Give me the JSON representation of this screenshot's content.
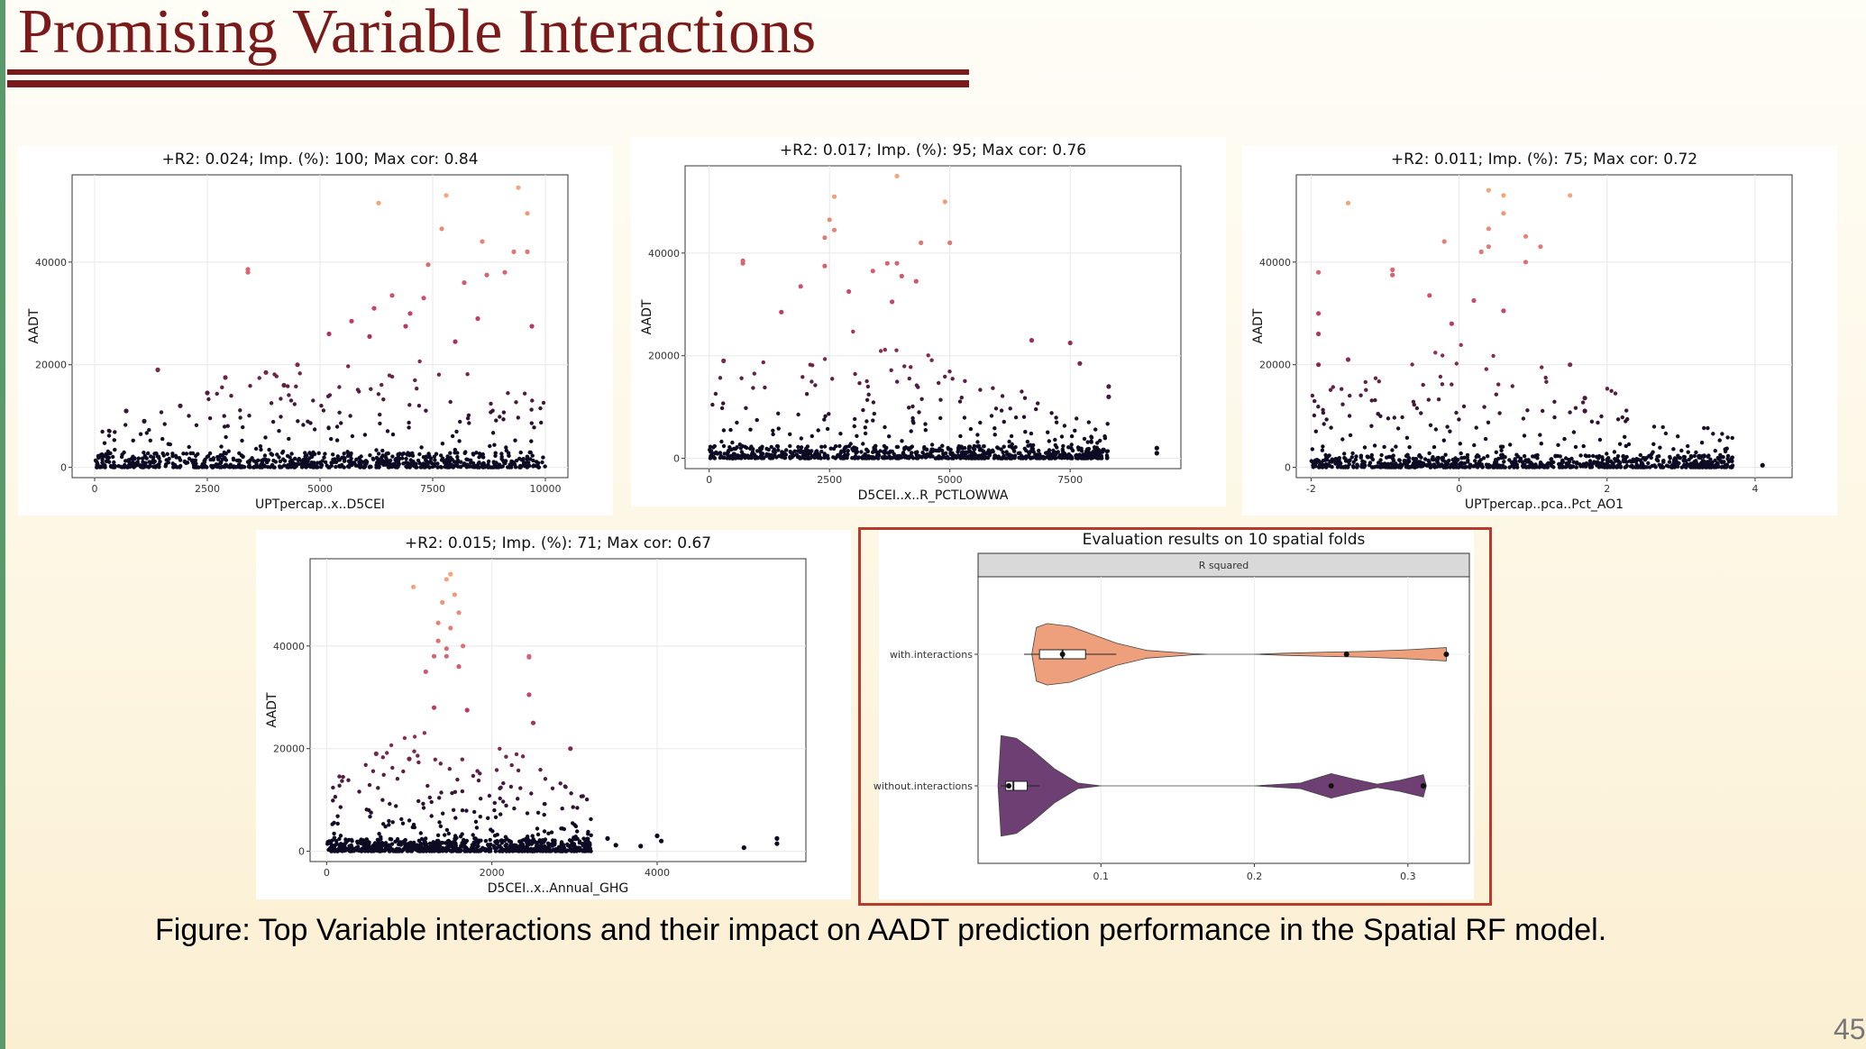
{
  "slide": {
    "title": "Promising Variable Interactions",
    "caption": "Figure: Top Variable interactions and their impact on AADT prediction performance in the Spatial RF model.",
    "page_number": "45"
  },
  "colors": {
    "title": "#7b1a1a",
    "frame": "#b83a2e",
    "scatter_low": "#0d0a23",
    "scatter_mid": "#c03a6a",
    "scatter_high": "#f4a57c",
    "violin_with": "#eea07c",
    "violin_without": "#6e3f72"
  },
  "chart_data": [
    {
      "type": "scatter",
      "title": "+R2: 0.024; Imp. (%): 100; Max cor: 0.84",
      "xlabel": "UPTpercap..x..D5CEI",
      "ylabel": "AADT",
      "xlim": [
        -500,
        10500
      ],
      "ylim": [
        -2000,
        57000
      ],
      "xticks": [
        0,
        2500,
        5000,
        7500,
        10000
      ],
      "yticks": [
        0,
        20000,
        40000
      ],
      "points": [
        [
          3400,
          38000
        ],
        [
          3400,
          38600
        ],
        [
          1400,
          19000
        ],
        [
          6300,
          51500
        ],
        [
          7800,
          53000
        ],
        [
          9400,
          54500
        ],
        [
          9600,
          49500
        ],
        [
          7700,
          46500
        ],
        [
          8600,
          44000
        ],
        [
          9300,
          42000
        ],
        [
          9600,
          42000
        ],
        [
          7400,
          39500
        ],
        [
          8700,
          37500
        ],
        [
          6600,
          33500
        ],
        [
          7300,
          33000
        ],
        [
          8200,
          36000
        ],
        [
          9100,
          38000
        ],
        [
          6200,
          31000
        ],
        [
          7000,
          30000
        ],
        [
          5700,
          28500
        ],
        [
          8500,
          29000
        ],
        [
          9700,
          27500
        ],
        [
          5200,
          26000
        ],
        [
          6100,
          25500
        ],
        [
          6900,
          27500
        ],
        [
          8000,
          24500
        ],
        [
          4500,
          20000
        ],
        [
          3800,
          18500
        ],
        [
          2900,
          17500
        ],
        [
          2500,
          14500
        ],
        [
          1900,
          12000
        ],
        [
          1100,
          9000
        ],
        [
          700,
          11000
        ],
        [
          4200,
          16000
        ]
      ],
      "cloud": {
        "x_range": [
          0,
          10000
        ],
        "x_peak": 6000,
        "dense_max": 6000,
        "sparse_max": 25000
      }
    },
    {
      "type": "scatter",
      "title": "+R2: 0.017; Imp. (%): 95; Max cor: 0.76",
      "xlabel": "D5CEI..x..R_PCTLOWWA",
      "ylabel": "AADT",
      "xlim": [
        -500,
        9800
      ],
      "ylim": [
        -2000,
        57000
      ],
      "xticks": [
        0,
        2500,
        5000,
        7500
      ],
      "yticks": [
        0,
        20000,
        40000
      ],
      "points": [
        [
          3900,
          55000
        ],
        [
          2600,
          51000
        ],
        [
          4900,
          50000
        ],
        [
          2500,
          46500
        ],
        [
          2600,
          44500
        ],
        [
          2400,
          43000
        ],
        [
          4400,
          42000
        ],
        [
          5000,
          42000
        ],
        [
          700,
          38000
        ],
        [
          700,
          38500
        ],
        [
          3700,
          38000
        ],
        [
          3900,
          38000
        ],
        [
          2400,
          37500
        ],
        [
          3400,
          36500
        ],
        [
          4000,
          35500
        ],
        [
          4300,
          34500
        ],
        [
          1900,
          33500
        ],
        [
          2900,
          32500
        ],
        [
          1500,
          28500
        ],
        [
          3800,
          30500
        ],
        [
          6700,
          23000
        ],
        [
          7500,
          22500
        ],
        [
          7700,
          18500
        ],
        [
          8300,
          14000
        ],
        [
          8300,
          12000
        ],
        [
          9300,
          2000
        ],
        [
          9300,
          1000
        ],
        [
          300,
          19000
        ]
      ],
      "cloud": {
        "x_range": [
          0,
          8300
        ],
        "x_peak": 3000,
        "dense_max": 5000,
        "sparse_max": 26000
      }
    },
    {
      "type": "scatter",
      "title": "+R2: 0.011; Imp. (%): 75; Max cor: 0.72",
      "xlabel": "UPTpercap..pca..Pct_AO1",
      "ylabel": "AADT",
      "xlim": [
        -2.2,
        4.5
      ],
      "ylim": [
        -2000,
        57000
      ],
      "xticks": [
        -2,
        0,
        2,
        4
      ],
      "yticks": [
        0,
        20000,
        40000
      ],
      "points": [
        [
          -1.5,
          51500
        ],
        [
          0.4,
          54000
        ],
        [
          0.6,
          53000
        ],
        [
          1.5,
          53000
        ],
        [
          0.6,
          49500
        ],
        [
          0.4,
          46500
        ],
        [
          -0.9,
          38500
        ],
        [
          -0.9,
          37500
        ],
        [
          0.4,
          43000
        ],
        [
          0.9,
          45000
        ],
        [
          1.1,
          43000
        ],
        [
          0.3,
          42000
        ],
        [
          0.9,
          40000
        ],
        [
          -1.9,
          38000
        ],
        [
          -0.2,
          44000
        ],
        [
          -0.4,
          33500
        ],
        [
          0.2,
          32500
        ],
        [
          0.6,
          30500
        ],
        [
          -1.9,
          30000
        ],
        [
          -1.9,
          26000
        ],
        [
          -0.1,
          28000
        ],
        [
          -1.9,
          20000
        ],
        [
          1.5,
          20000
        ],
        [
          1.7,
          13500
        ],
        [
          1.7,
          11000
        ],
        [
          3.6,
          3500
        ],
        [
          4.1,
          400
        ],
        [
          -1.5,
          21000
        ]
      ],
      "cloud": {
        "x_range": [
          -2,
          3.7
        ],
        "x_peak": 0,
        "dense_max": 5000,
        "sparse_max": 26000
      }
    },
    {
      "type": "scatter",
      "title": "+R2: 0.015; Imp. (%): 71; Max cor: 0.67",
      "xlabel": "D5CEI..x..Annual_GHG",
      "ylabel": "AADT",
      "xlim": [
        -200,
        5800
      ],
      "ylim": [
        -2000,
        57000
      ],
      "xticks": [
        0,
        2000,
        4000
      ],
      "yticks": [
        0,
        20000,
        40000
      ],
      "points": [
        [
          1500,
          54000
        ],
        [
          1450,
          53000
        ],
        [
          1050,
          51500
        ],
        [
          1550,
          50000
        ],
        [
          1400,
          48500
        ],
        [
          1600,
          46500
        ],
        [
          1350,
          44500
        ],
        [
          1500,
          43500
        ],
        [
          1350,
          41000
        ],
        [
          1650,
          40000
        ],
        [
          1450,
          39500
        ],
        [
          1300,
          38000
        ],
        [
          1450,
          38000
        ],
        [
          2450,
          38000
        ],
        [
          2450,
          37800
        ],
        [
          1600,
          36000
        ],
        [
          1200,
          35000
        ],
        [
          2450,
          30500
        ],
        [
          1300,
          28000
        ],
        [
          1700,
          27500
        ],
        [
          2500,
          25000
        ],
        [
          2950,
          20000
        ],
        [
          600,
          19000
        ],
        [
          1000,
          18000
        ],
        [
          5450,
          2500
        ],
        [
          5450,
          1500
        ],
        [
          5050,
          700
        ],
        [
          4000,
          3000
        ],
        [
          4050,
          2000
        ],
        [
          3800,
          1000
        ],
        [
          3400,
          2500
        ],
        [
          3500,
          1200
        ]
      ],
      "cloud": {
        "x_range": [
          0,
          3200
        ],
        "x_peak": 1450,
        "dense_max": 5000,
        "sparse_max": 28000
      }
    },
    {
      "type": "violin",
      "title": "Evaluation results on 10 spatial folds",
      "facet": "R squared",
      "categories": [
        "with.interactions",
        "without.interactions"
      ],
      "xlim": [
        0.02,
        0.34
      ],
      "xticks": [
        0.1,
        0.2,
        0.3
      ],
      "series": [
        {
          "points": [
            0.075,
            0.26,
            0.325
          ],
          "box": {
            "q1": 0.06,
            "median": 0.075,
            "q3": 0.09,
            "wmin": 0.05,
            "wmax": 0.11
          },
          "profile": [
            [
              0.055,
              0.0
            ],
            [
              0.058,
              0.48
            ],
            [
              0.065,
              0.55
            ],
            [
              0.08,
              0.5
            ],
            [
              0.095,
              0.35
            ],
            [
              0.11,
              0.2
            ],
            [
              0.13,
              0.07
            ],
            [
              0.16,
              0.01
            ],
            [
              0.17,
              0.0
            ],
            [
              0.2,
              0.0
            ],
            [
              0.22,
              0.02
            ],
            [
              0.25,
              0.04
            ],
            [
              0.27,
              0.05
            ],
            [
              0.3,
              0.08
            ],
            [
              0.325,
              0.12
            ]
          ]
        },
        {
          "points": [
            0.04,
            0.25,
            0.31
          ],
          "box": {
            "q1": 0.038,
            "median": 0.043,
            "q3": 0.052,
            "wmin": 0.035,
            "wmax": 0.06
          },
          "profile": [
            [
              0.033,
              0.0
            ],
            [
              0.035,
              0.9
            ],
            [
              0.045,
              0.85
            ],
            [
              0.055,
              0.65
            ],
            [
              0.07,
              0.3
            ],
            [
              0.085,
              0.05
            ],
            [
              0.1,
              0.0
            ],
            [
              0.2,
              0.0
            ],
            [
              0.23,
              0.05
            ],
            [
              0.25,
              0.22
            ],
            [
              0.265,
              0.12
            ],
            [
              0.28,
              0.03
            ],
            [
              0.295,
              0.1
            ],
            [
              0.31,
              0.2
            ],
            [
              0.312,
              0.0
            ]
          ]
        }
      ]
    }
  ]
}
